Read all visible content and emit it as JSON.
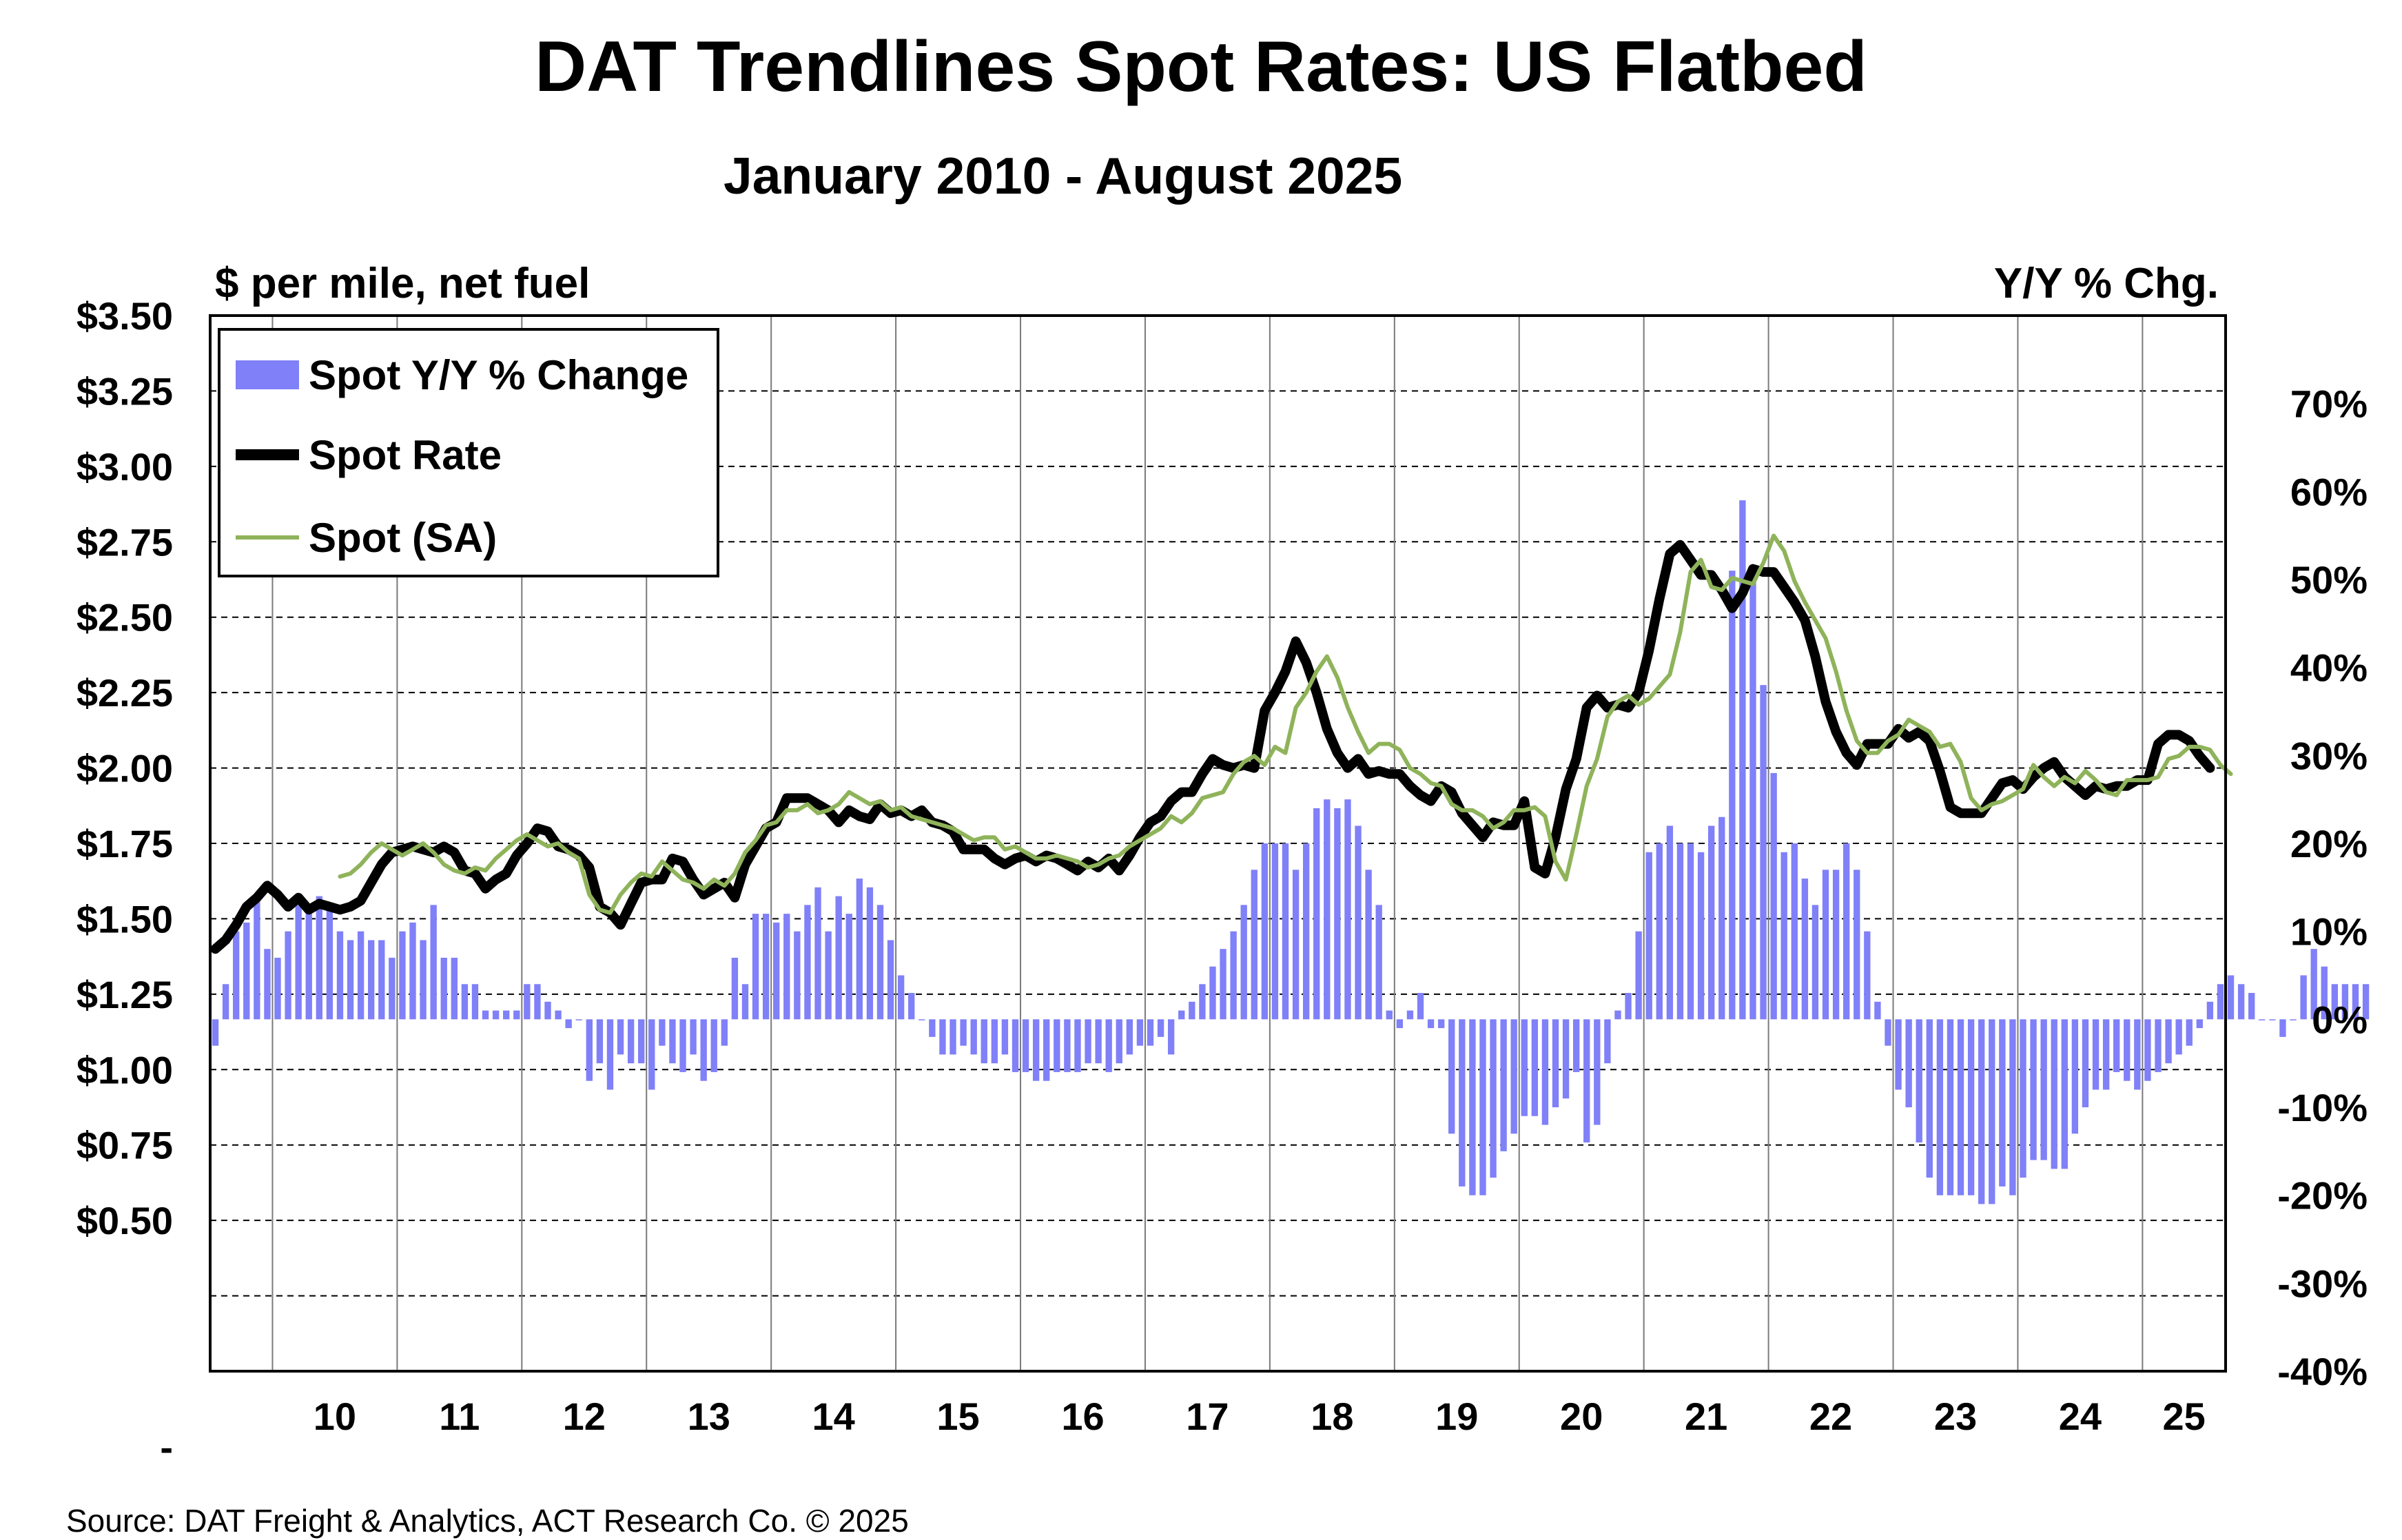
{
  "title": "DAT Trendlines Spot Rates: US Flatbed",
  "subtitle": "January 2010 - August 2025",
  "left_axis_label": "$ per mile, net fuel",
  "right_axis_label": "Y/Y % Chg.",
  "source": "Source: DAT Freight & Analytics, ACT Research Co. © 2025",
  "colors": {
    "bars": "#8080f8",
    "spot": "#000000",
    "sa": "#8fb35a",
    "grid": "#000000"
  },
  "chart_data": {
    "type": "bar+line",
    "left_axis": {
      "min": 0,
      "max": 3.5,
      "ticks": [
        "$3.50",
        "$3.25",
        "$3.00",
        "$2.75",
        "$2.50",
        "$2.25",
        "$2.00",
        "$1.75",
        "$1.50",
        "$1.25",
        "$1.00",
        "$0.75",
        "$0.50",
        "",
        "",
        "-"
      ]
    },
    "right_axis": {
      "min": -40,
      "max": 80,
      "ticks": [
        "70%",
        "60%",
        "50%",
        "40%",
        "30%",
        "20%",
        "10%",
        "0%",
        "-10%",
        "-20%",
        "-30%",
        "-40%"
      ]
    },
    "x_ticks": [
      "10",
      "11",
      "12",
      "13",
      "14",
      "15",
      "16",
      "17",
      "18",
      "19",
      "20",
      "21",
      "22",
      "23",
      "24",
      "25"
    ],
    "x_range": [
      "2009-07",
      "2025-08"
    ],
    "legend": [
      "Spot Y/Y % Change",
      "Spot Rate",
      "Spot (SA)"
    ],
    "series": [
      {
        "name": "Spot Rate",
        "type": "line",
        "axis": "left",
        "start": "2009-07",
        "values": [
          1.4,
          1.43,
          1.48,
          1.54,
          1.57,
          1.61,
          1.58,
          1.54,
          1.57,
          1.53,
          1.55,
          1.54,
          1.53,
          1.54,
          1.56,
          1.62,
          1.68,
          1.72,
          1.73,
          1.74,
          1.73,
          1.72,
          1.74,
          1.72,
          1.66,
          1.65,
          1.6,
          1.63,
          1.65,
          1.71,
          1.75,
          1.8,
          1.79,
          1.74,
          1.73,
          1.71,
          1.67,
          1.54,
          1.52,
          1.48,
          1.55,
          1.62,
          1.63,
          1.63,
          1.7,
          1.69,
          1.63,
          1.58,
          1.6,
          1.62,
          1.57,
          1.68,
          1.74,
          1.8,
          1.82,
          1.9,
          1.9,
          1.9,
          1.88,
          1.86,
          1.82,
          1.86,
          1.84,
          1.83,
          1.88,
          1.85,
          1.86,
          1.84,
          1.86,
          1.82,
          1.81,
          1.79,
          1.73,
          1.73,
          1.73,
          1.7,
          1.68,
          1.7,
          1.71,
          1.69,
          1.71,
          1.7,
          1.68,
          1.66,
          1.69,
          1.67,
          1.7,
          1.66,
          1.71,
          1.77,
          1.82,
          1.84,
          1.89,
          1.92,
          1.92,
          1.98,
          2.03,
          2.01,
          2.0,
          2.01,
          2.0,
          2.19,
          2.25,
          2.32,
          2.42,
          2.35,
          2.25,
          2.13,
          2.05,
          2.0,
          2.03,
          1.98,
          1.99,
          1.98,
          1.98,
          1.94,
          1.91,
          1.89,
          1.94,
          1.92,
          1.85,
          1.81,
          1.77,
          1.82,
          1.81,
          1.81,
          1.89,
          1.67,
          1.65,
          1.77,
          1.93,
          2.03,
          2.2,
          2.24,
          2.2,
          2.21,
          2.2,
          2.25,
          2.39,
          2.56,
          2.71,
          2.74,
          2.69,
          2.64,
          2.64,
          2.59,
          2.53,
          2.58,
          2.66,
          2.65,
          2.65,
          2.6,
          2.55,
          2.49,
          2.37,
          2.22,
          2.12,
          2.05,
          2.01,
          2.08,
          2.08,
          2.08,
          2.13,
          2.1,
          2.12,
          2.09,
          1.99,
          1.87,
          1.85,
          1.85,
          1.85,
          1.9,
          1.95,
          1.96,
          1.93,
          1.97,
          2.0,
          2.02,
          1.97,
          1.94,
          1.91,
          1.94,
          1.93,
          1.94,
          1.94,
          1.96,
          1.96,
          2.08,
          2.11,
          2.11,
          2.09,
          2.04,
          2.0
        ]
      },
      {
        "name": "Spot (SA)",
        "type": "line",
        "axis": "left",
        "start": "2010-07",
        "values": [
          1.64,
          1.65,
          1.68,
          1.72,
          1.75,
          1.73,
          1.71,
          1.73,
          1.75,
          1.72,
          1.68,
          1.66,
          1.65,
          1.67,
          1.66,
          1.7,
          1.73,
          1.76,
          1.78,
          1.76,
          1.74,
          1.75,
          1.72,
          1.7,
          1.58,
          1.53,
          1.52,
          1.58,
          1.62,
          1.65,
          1.64,
          1.69,
          1.66,
          1.63,
          1.62,
          1.6,
          1.63,
          1.61,
          1.65,
          1.72,
          1.76,
          1.81,
          1.82,
          1.86,
          1.86,
          1.88,
          1.85,
          1.86,
          1.88,
          1.92,
          1.9,
          1.88,
          1.89,
          1.86,
          1.87,
          1.84,
          1.83,
          1.82,
          1.81,
          1.8,
          1.78,
          1.76,
          1.77,
          1.77,
          1.73,
          1.74,
          1.72,
          1.7,
          1.7,
          1.71,
          1.7,
          1.69,
          1.67,
          1.68,
          1.7,
          1.71,
          1.74,
          1.76,
          1.78,
          1.8,
          1.84,
          1.82,
          1.85,
          1.9,
          1.91,
          1.92,
          1.98,
          2.02,
          2.04,
          2.01,
          2.07,
          2.05,
          2.2,
          2.25,
          2.32,
          2.37,
          2.3,
          2.2,
          2.12,
          2.05,
          2.08,
          2.08,
          2.06,
          2.0,
          1.98,
          1.95,
          1.94,
          1.88,
          1.86,
          1.86,
          1.84,
          1.8,
          1.82,
          1.86,
          1.86,
          1.87,
          1.84,
          1.69,
          1.63,
          1.78,
          1.94,
          2.03,
          2.17,
          2.22,
          2.24,
          2.21,
          2.23,
          2.27,
          2.31,
          2.45,
          2.65,
          2.69,
          2.6,
          2.59,
          2.63,
          2.62,
          2.61,
          2.68,
          2.77,
          2.72,
          2.62,
          2.55,
          2.49,
          2.43,
          2.32,
          2.19,
          2.09,
          2.05,
          2.05,
          2.09,
          2.11,
          2.16,
          2.14,
          2.12,
          2.07,
          2.08,
          2.02,
          1.9,
          1.86,
          1.88,
          1.89,
          1.91,
          1.93,
          2.01,
          1.97,
          1.94,
          1.97,
          1.95,
          1.99,
          1.96,
          1.92,
          1.91,
          1.96,
          1.96,
          1.96,
          1.97,
          2.03,
          2.04,
          2.07,
          2.07,
          2.06,
          2.01,
          1.98
        ]
      },
      {
        "name": "Spot Y/Y % Change",
        "type": "bar",
        "axis": "right",
        "start": "2009-07",
        "values": [
          -3,
          4,
          10,
          11,
          14,
          8,
          7,
          10,
          13,
          12,
          14,
          13,
          10,
          9,
          10,
          9,
          9,
          7,
          10,
          11,
          9,
          13,
          7,
          7,
          4,
          4,
          1,
          1,
          1,
          1,
          4,
          4,
          2,
          1,
          -1,
          0,
          -7,
          -5,
          -8,
          -4,
          -5,
          -5,
          -8,
          -3,
          -5,
          -6,
          -4,
          -7,
          -6,
          -3,
          7,
          4,
          12,
          12,
          11,
          12,
          10,
          13,
          15,
          10,
          14,
          12,
          16,
          15,
          13,
          9,
          5,
          3,
          0,
          -2,
          -4,
          -4,
          -3,
          -4,
          -5,
          -5,
          -4,
          -6,
          -6,
          -7,
          -7,
          -6,
          -6,
          -6,
          -5,
          -5,
          -6,
          -5,
          -4,
          -3,
          -3,
          -2,
          -4,
          1,
          2,
          4,
          6,
          8,
          10,
          13,
          17,
          20,
          20,
          20,
          17,
          20,
          24,
          25,
          24,
          25,
          22,
          17,
          13,
          1,
          -1,
          1,
          3,
          -1,
          -1,
          -13,
          -19,
          -20,
          -20,
          -18,
          -15,
          -13,
          -11,
          -11,
          -12,
          -10,
          -9,
          -6,
          -14,
          -12,
          -5,
          1,
          3,
          10,
          19,
          20,
          22,
          20,
          20,
          19,
          22,
          23,
          51,
          59,
          51,
          38,
          28,
          19,
          20,
          16,
          13,
          17,
          17,
          20,
          17,
          10,
          2,
          -3,
          -8,
          -10,
          -14,
          -18,
          -20,
          -20,
          -20,
          -20,
          -21,
          -21,
          -19,
          -20,
          -18,
          -16,
          -16,
          -17,
          -17,
          -13,
          -10,
          -8,
          -8,
          -6,
          -7,
          -8,
          -7,
          -6,
          -5,
          -4,
          -3,
          -1,
          2,
          4,
          5,
          4,
          3,
          0,
          0,
          -2,
          0,
          5,
          8,
          6,
          4,
          4,
          4,
          4
        ]
      }
    ]
  }
}
